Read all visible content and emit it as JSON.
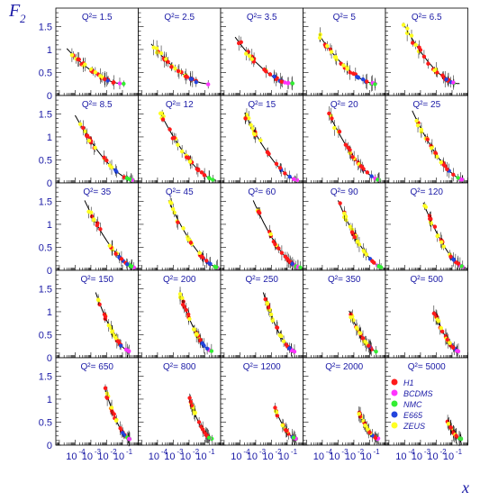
{
  "chart_data": {
    "type": "scatter",
    "layout": "5x5 panel grid",
    "xlabel": "x",
    "ylabel_main": "F",
    "ylabel_sub": "2",
    "x_scale": "log",
    "xlim": [
      6e-06,
      1.0
    ],
    "ylim": [
      0,
      1.9
    ],
    "y_ticks": [
      "0",
      "0.5",
      "1",
      "1.5"
    ],
    "y_tick_values": [
      0,
      0.5,
      1,
      1.5
    ],
    "x_tick_base": "10",
    "x_tick_exponents": [
      "-4",
      "-3",
      "-2",
      "-1"
    ],
    "x_tick_values": [
      0.0001,
      0.001,
      0.01,
      0.1
    ],
    "legend_position": "bottom-right panel",
    "legend": [
      {
        "name": "H1",
        "color": "#ff1a1a"
      },
      {
        "name": "BCDMS",
        "color": "#ff33ff"
      },
      {
        "name": "NMC",
        "color": "#33ee33"
      },
      {
        "name": "E665",
        "color": "#2244dd"
      },
      {
        "name": "ZEUS",
        "color": "#ffff22"
      }
    ],
    "panels": [
      {
        "label": "Q²= 1.5",
        "xmin": 3e-05,
        "xmax": 0.15,
        "f_lo": 0.3,
        "f_hi": 1.0
      },
      {
        "label": "Q²= 2.5",
        "xmin": 4e-05,
        "xmax": 0.2,
        "f_lo": 0.3,
        "f_hi": 1.1
      },
      {
        "label": "Q²= 3.5",
        "xmin": 5e-05,
        "xmax": 0.25,
        "f_lo": 0.3,
        "f_hi": 1.25
      },
      {
        "label": "Q²= 5",
        "xmin": 6e-05,
        "xmax": 0.3,
        "f_lo": 0.3,
        "f_hi": 1.3
      },
      {
        "label": "Q²= 6.5",
        "xmin": 8e-05,
        "xmax": 0.3,
        "f_lo": 0.3,
        "f_hi": 1.55
      },
      {
        "label": "Q²= 8.5",
        "xmin": 0.0001,
        "xmax": 0.5,
        "f_lo": 0.05,
        "f_hi": 1.45
      },
      {
        "label": "Q²= 12",
        "xmin": 0.00015,
        "xmax": 0.5,
        "f_lo": 0.05,
        "f_hi": 1.5
      },
      {
        "label": "Q²= 15",
        "xmin": 0.0002,
        "xmax": 0.5,
        "f_lo": 0.05,
        "f_hi": 1.5
      },
      {
        "label": "Q²= 20",
        "xmin": 0.00025,
        "xmax": 0.5,
        "f_lo": 0.05,
        "f_hi": 1.5
      },
      {
        "label": "Q²= 25",
        "xmin": 0.0003,
        "xmax": 0.6,
        "f_lo": 0.05,
        "f_hi": 1.55
      },
      {
        "label": "Q²= 35",
        "xmin": 0.0004,
        "xmax": 0.7,
        "f_lo": 0.05,
        "f_hi": 1.5
      },
      {
        "label": "Q²= 45",
        "xmin": 0.0005,
        "xmax": 0.7,
        "f_lo": 0.05,
        "f_hi": 1.5
      },
      {
        "label": "Q²= 60",
        "xmin": 0.0007,
        "xmax": 0.7,
        "f_lo": 0.05,
        "f_hi": 1.5
      },
      {
        "label": "Q²= 90",
        "xmin": 0.001,
        "xmax": 0.7,
        "f_lo": 0.05,
        "f_hi": 1.5
      },
      {
        "label": "Q²= 120",
        "xmin": 0.0015,
        "xmax": 0.7,
        "f_lo": 0.05,
        "f_hi": 1.45
      },
      {
        "label": "Q²= 150",
        "xmin": 0.002,
        "xmax": 0.3,
        "f_lo": 0.15,
        "f_hi": 1.4
      },
      {
        "label": "Q²= 200",
        "xmin": 0.0025,
        "xmax": 0.3,
        "f_lo": 0.15,
        "f_hi": 1.4
      },
      {
        "label": "Q²= 250",
        "xmin": 0.003,
        "xmax": 0.3,
        "f_lo": 0.15,
        "f_hi": 1.4
      },
      {
        "label": "Q²= 350",
        "xmin": 0.005,
        "xmax": 0.3,
        "f_lo": 0.15,
        "f_hi": 1.0
      },
      {
        "label": "Q²= 500",
        "xmin": 0.007,
        "xmax": 0.3,
        "f_lo": 0.15,
        "f_hi": 1.0
      },
      {
        "label": "Q²= 650",
        "xmin": 0.008,
        "xmax": 0.3,
        "f_lo": 0.15,
        "f_hi": 1.2
      },
      {
        "label": "Q²= 800",
        "xmin": 0.01,
        "xmax": 0.3,
        "f_lo": 0.15,
        "f_hi": 1.0
      },
      {
        "label": "Q²= 1200",
        "xmin": 0.015,
        "xmax": 0.4,
        "f_lo": 0.15,
        "f_hi": 0.8
      },
      {
        "label": "Q²= 2000",
        "xmin": 0.02,
        "xmax": 0.4,
        "f_lo": 0.15,
        "f_hi": 0.7
      },
      {
        "label": "Q²= 5000",
        "xmin": 0.05,
        "xmax": 0.4,
        "f_lo": 0.15,
        "f_hi": 0.5
      }
    ]
  }
}
